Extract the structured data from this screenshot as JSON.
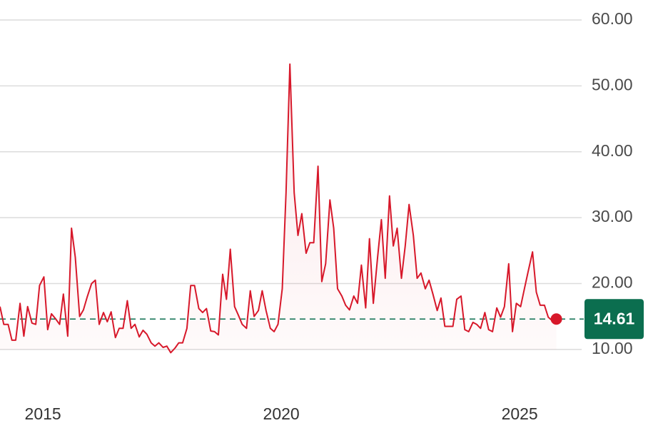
{
  "chart_data": {
    "type": "line",
    "color": "#d7182a",
    "last_value_color": "#0b6e4f",
    "grid": true,
    "xlim": [
      2014.1,
      2026.3
    ],
    "ylim": [
      5,
      60
    ],
    "xticks": [
      2015,
      2020,
      2025
    ],
    "yticks": [
      {
        "value": 10,
        "label": "10.00"
      },
      {
        "value": 20,
        "label": "20.00"
      },
      {
        "value": 30,
        "label": "30.00"
      },
      {
        "value": 40,
        "label": "40.00"
      },
      {
        "value": 50,
        "label": "50.00"
      },
      {
        "value": 60,
        "label": "60.00"
      }
    ],
    "x": [
      2014.1,
      2014.18,
      2014.27,
      2014.35,
      2014.43,
      2014.52,
      2014.6,
      2014.68,
      2014.77,
      2014.85,
      2014.93,
      2015.02,
      2015.1,
      2015.18,
      2015.27,
      2015.35,
      2015.43,
      2015.52,
      2015.6,
      2015.68,
      2015.77,
      2015.85,
      2015.93,
      2016.02,
      2016.1,
      2016.18,
      2016.27,
      2016.35,
      2016.43,
      2016.52,
      2016.6,
      2016.68,
      2016.77,
      2016.85,
      2016.93,
      2017.02,
      2017.1,
      2017.18,
      2017.27,
      2017.35,
      2017.43,
      2017.52,
      2017.6,
      2017.68,
      2017.77,
      2017.85,
      2017.93,
      2018.02,
      2018.1,
      2018.18,
      2018.27,
      2018.35,
      2018.43,
      2018.52,
      2018.6,
      2018.68,
      2018.77,
      2018.85,
      2018.93,
      2019.02,
      2019.1,
      2019.18,
      2019.27,
      2019.35,
      2019.43,
      2019.52,
      2019.6,
      2019.68,
      2019.77,
      2019.85,
      2019.93,
      2020.02,
      2020.1,
      2020.18,
      2020.27,
      2020.35,
      2020.43,
      2020.52,
      2020.6,
      2020.68,
      2020.77,
      2020.85,
      2020.93,
      2021.02,
      2021.1,
      2021.18,
      2021.27,
      2021.35,
      2021.43,
      2021.52,
      2021.6,
      2021.68,
      2021.77,
      2021.85,
      2021.93,
      2022.02,
      2022.1,
      2022.18,
      2022.27,
      2022.35,
      2022.43,
      2022.52,
      2022.6,
      2022.68,
      2022.77,
      2022.85,
      2022.93,
      2023.02,
      2023.1,
      2023.18,
      2023.27,
      2023.35,
      2023.43,
      2023.52,
      2023.6,
      2023.68,
      2023.77,
      2023.85,
      2023.93,
      2024.02,
      2024.1,
      2024.18,
      2024.27,
      2024.35,
      2024.43,
      2024.52,
      2024.6,
      2024.68,
      2024.77,
      2024.85,
      2024.93,
      2025.02,
      2025.1,
      2025.18,
      2025.27,
      2025.35,
      2025.43,
      2025.52,
      2025.6,
      2025.68,
      2025.77
    ],
    "values": [
      16.5,
      13.8,
      13.8,
      11.4,
      11.4,
      17,
      12,
      16.5,
      14,
      13.8,
      19.7,
      21,
      13,
      15.4,
      14.6,
      13.8,
      18.4,
      12,
      28.4,
      24,
      15,
      16,
      18,
      20,
      20.5,
      13.8,
      15.6,
      14.2,
      15.7,
      11.8,
      13.2,
      13.2,
      17.4,
      13.2,
      13.8,
      11.9,
      12.9,
      12.3,
      11,
      10.5,
      11,
      10.3,
      10.5,
      9.5,
      10.2,
      11,
      11,
      13.2,
      19.7,
      19.7,
      16.2,
      15.6,
      16.2,
      12.8,
      12.7,
      12.2,
      21.4,
      17.6,
      25.2,
      16.5,
      15.2,
      13.8,
      13.2,
      18.9,
      15,
      15.9,
      18.9,
      15.9,
      13.2,
      12.7,
      13.8,
      19.2,
      33.8,
      53.3,
      33.8,
      27.3,
      30.6,
      24.6,
      26.2,
      26.2,
      37.8,
      20.3,
      23,
      32.7,
      28.4,
      19.2,
      18.1,
      16.7,
      16,
      18.1,
      17,
      22.8,
      16.3,
      26.8,
      17,
      24,
      29.7,
      20.8,
      33.3,
      25.7,
      28.4,
      20.8,
      25.7,
      32,
      27.3,
      20.8,
      21.6,
      19.2,
      20.5,
      18.4,
      15.9,
      17.8,
      13.5,
      13.5,
      13.5,
      17.6,
      18.1,
      13,
      12.7,
      14.1,
      13.8,
      13.2,
      15.6,
      13,
      12.7,
      16.3,
      14.9,
      16.5,
      23,
      12.7,
      17,
      16.5,
      19.2,
      21.9,
      24.8,
      18.7,
      16.7,
      16.7,
      14.9,
      14.4,
      14.61
    ]
  }
}
